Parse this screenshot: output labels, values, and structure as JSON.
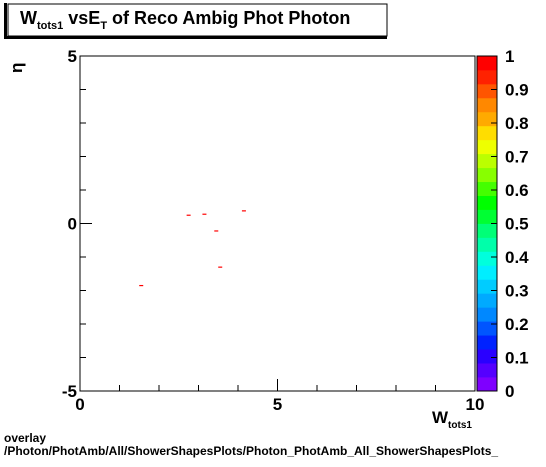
{
  "title": {
    "main": "W",
    "sub": "tots1",
    "rest": " vsE",
    "sub2": "T",
    "tail": " of Reco Ambig Phot Photon"
  },
  "footer": {
    "line1": "overlay",
    "line2": "/Photon/PhotAmb/All/ShowerShapesPlots/Photon_PhotAmb_All_ShowerShapesPlots_"
  },
  "chart_data": {
    "type": "scatter",
    "title": "W_tots1 vsE_T of Reco Ambig Phot Photon",
    "xlabel": {
      "main": "W",
      "sub": "tots1"
    },
    "ylabel": "η",
    "xlim": [
      0,
      10
    ],
    "ylim": [
      -5,
      5
    ],
    "x_ticks": [
      "0",
      "5",
      "10"
    ],
    "y_ticks": [
      "-5",
      "0",
      "5"
    ],
    "colorbar": {
      "range": [
        0,
        1
      ],
      "tick_labels": [
        "0",
        "0.1",
        "0.2",
        "0.3",
        "0.4",
        "0.5",
        "0.6",
        "0.7",
        "0.8",
        "0.9",
        "1"
      ],
      "colors": [
        "#7f00ff",
        "#5500ff",
        "#2a00ff",
        "#0022ff",
        "#0055ff",
        "#0088ff",
        "#00aaff",
        "#00ccff",
        "#00eeff",
        "#00ffdd",
        "#00ffaa",
        "#00ff77",
        "#00ff33",
        "#00ff00",
        "#44ff00",
        "#88ff00",
        "#bbff00",
        "#eeff00",
        "#ffdd00",
        "#ffaa00",
        "#ff8800",
        "#ff5500",
        "#ff2200",
        "#ff0000"
      ]
    },
    "points": [
      {
        "x": 1.55,
        "y": -1.85
      },
      {
        "x": 2.75,
        "y": 0.25
      },
      {
        "x": 3.15,
        "y": 0.28
      },
      {
        "x": 3.45,
        "y": -0.22
      },
      {
        "x": 3.55,
        "y": -1.3
      },
      {
        "x": 4.15,
        "y": 0.38
      }
    ],
    "point_color": "#ff0000",
    "grid": false
  }
}
